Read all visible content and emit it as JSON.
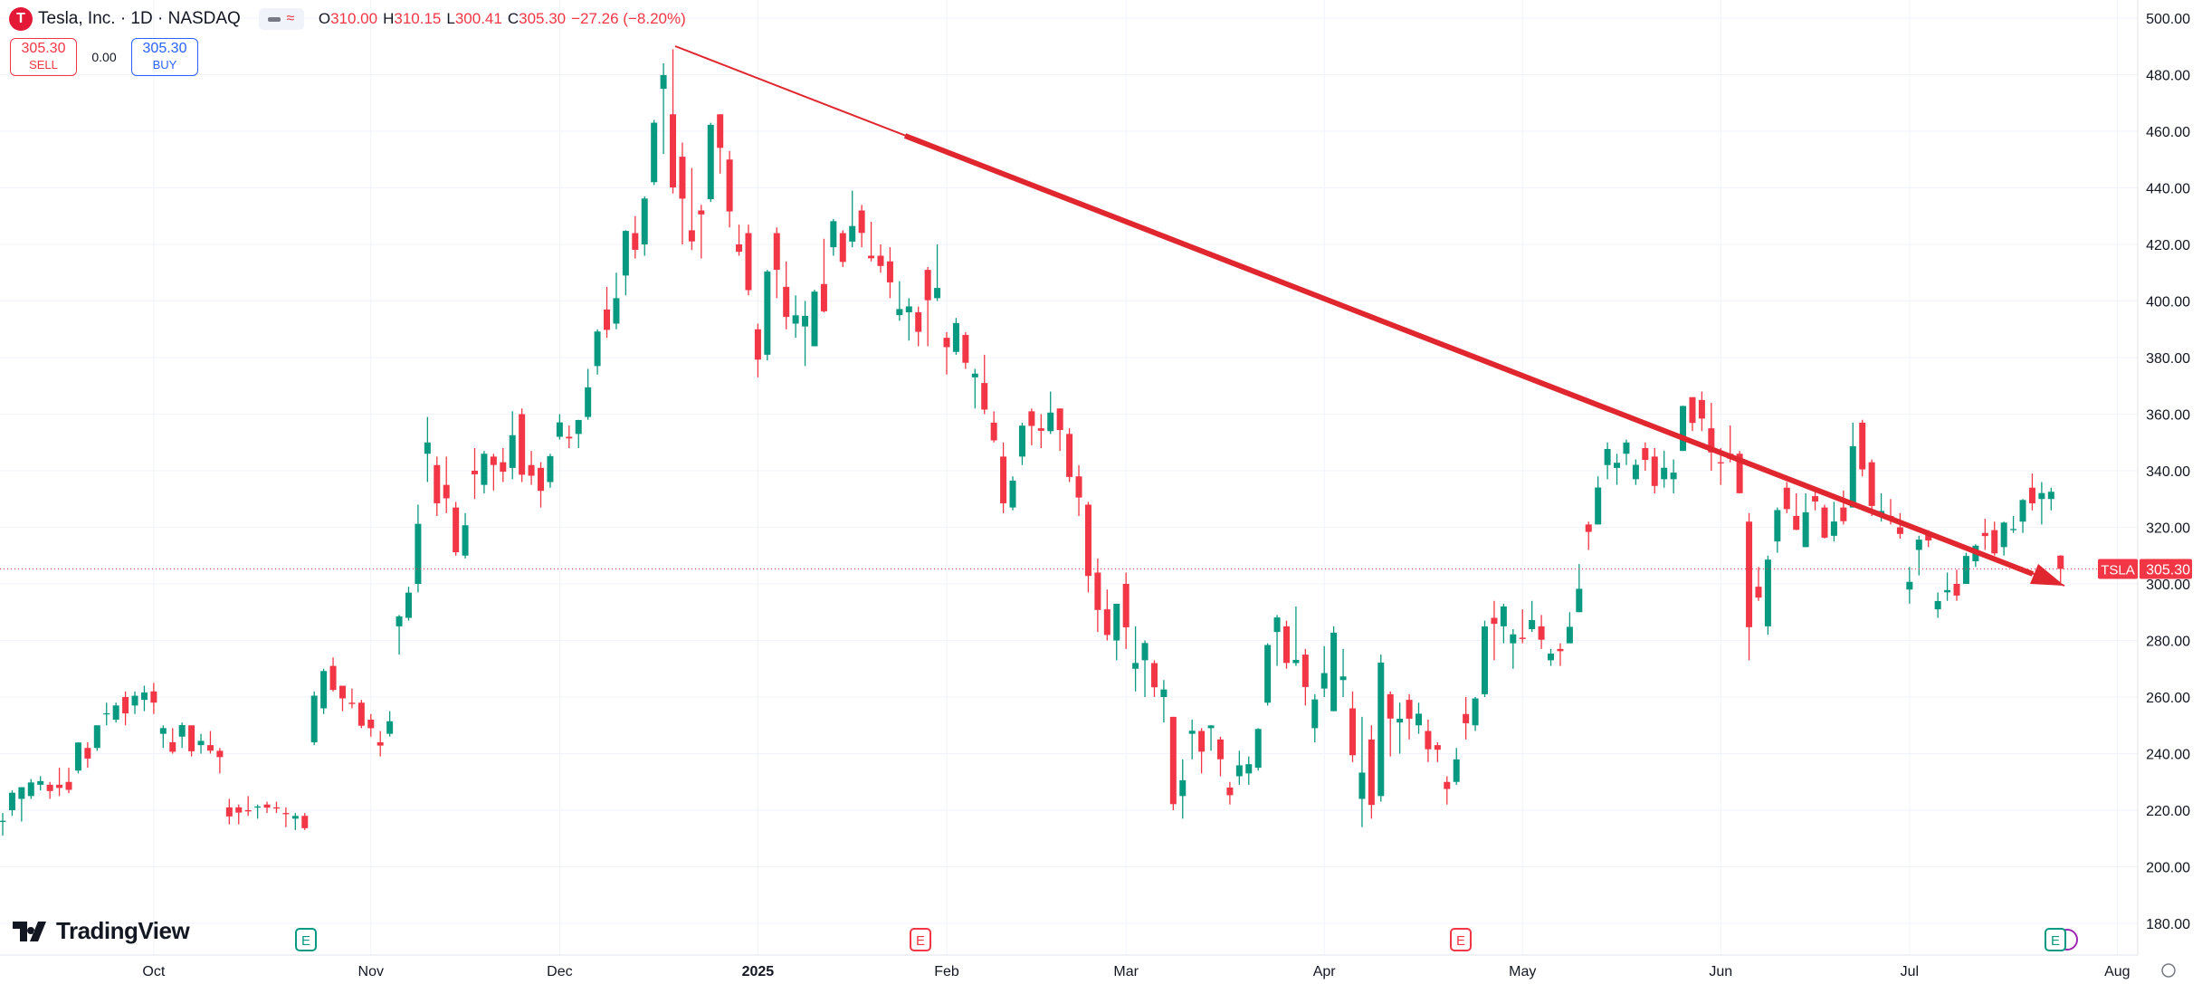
{
  "header": {
    "symbol": "Tesla, Inc. · 1D · NASDAQ",
    "ohlc": [
      {
        "key": "O",
        "value": "310.00"
      },
      {
        "key": "H",
        "value": "310.15"
      },
      {
        "key": "L",
        "value": "300.41"
      },
      {
        "key": "C",
        "value": "305.30"
      }
    ],
    "change": "−27.26 (−8.20%)"
  },
  "trade": {
    "sell_price": "305.30",
    "sell_label": "SELL",
    "spread": "0.00",
    "buy_price": "305.30",
    "buy_label": "BUY"
  },
  "branding": "TradingView",
  "earnings_markers": [
    "E",
    "E",
    "E",
    "E"
  ],
  "chart_data": {
    "type": "candlestick",
    "up_color": "#089981",
    "down_color": "#f23645",
    "grid": true,
    "ylim": [
      173.6,
      506.4
    ],
    "yticks": [
      {
        "value": 180,
        "label": "180.00"
      },
      {
        "value": 200,
        "label": "200.00"
      },
      {
        "value": 220,
        "label": "220.00"
      },
      {
        "value": 240,
        "label": "240.00"
      },
      {
        "value": 260,
        "label": "260.00"
      },
      {
        "value": 280,
        "label": "280.00"
      },
      {
        "value": 300,
        "label": "300.00"
      },
      {
        "value": 320,
        "label": "320.00"
      },
      {
        "value": 340,
        "label": "340.00"
      },
      {
        "value": 360,
        "label": "360.00"
      },
      {
        "value": 380,
        "label": "380.00"
      },
      {
        "value": 400,
        "label": "400.00"
      },
      {
        "value": 420,
        "label": "420.00"
      },
      {
        "value": 440,
        "label": "440.00"
      },
      {
        "value": 460,
        "label": "460.00"
      },
      {
        "value": 480,
        "label": "480.00"
      },
      {
        "value": 500,
        "label": "500.00"
      }
    ],
    "xticks": [
      {
        "value": 16,
        "label": "Oct"
      },
      {
        "value": 39,
        "label": "Nov"
      },
      {
        "value": 59,
        "label": "Dec"
      },
      {
        "value": 80,
        "label": "2025"
      },
      {
        "value": 100,
        "label": "Feb"
      },
      {
        "value": 119,
        "label": "Mar"
      },
      {
        "value": 140,
        "label": "Apr"
      },
      {
        "value": 161,
        "label": "May"
      },
      {
        "value": 182,
        "label": "Jun"
      },
      {
        "value": 202,
        "label": "Jul"
      },
      {
        "value": 224,
        "label": "Aug"
      }
    ],
    "last_symbol": "TSLA",
    "last_price": 305.3,
    "last_price_label": "305.30",
    "open": [
      216,
      220,
      224,
      225,
      229,
      229,
      229,
      230,
      234,
      242,
      242,
      254,
      252,
      260,
      257,
      259,
      262,
      247,
      244,
      246,
      250,
      243,
      243,
      241,
      221,
      221,
      220,
      221,
      222,
      221,
      219,
      217,
      218,
      244,
      256,
      271,
      264,
      258,
      258,
      252,
      244,
      247,
      285,
      288,
      300,
      346,
      342,
      335,
      327,
      310,
      340,
      335,
      345,
      343,
      341,
      360,
      342,
      341,
      336,
      352,
      352,
      353,
      359,
      377,
      397,
      392,
      409,
      424,
      420,
      442,
      475,
      466,
      451,
      425,
      432,
      436,
      466,
      450,
      420,
      424,
      390,
      381,
      424,
      405,
      392,
      391,
      384,
      406,
      419,
      424,
      421,
      432,
      416,
      416,
      414,
      395,
      396,
      396,
      411,
      401,
      387,
      382,
      388,
      373,
      371,
      357,
      345,
      327,
      345,
      361,
      355,
      354,
      362,
      353,
      338,
      328,
      304,
      291,
      280,
      300,
      270,
      273,
      272,
      260,
      253,
      225,
      247,
      248,
      249,
      245,
      228,
      232,
      233,
      235,
      258,
      283,
      285,
      272,
      275,
      249,
      263,
      255,
      266,
      256,
      224,
      245,
      225,
      261,
      251,
      259,
      250,
      248,
      243,
      230,
      230,
      254,
      250,
      261,
      288,
      285,
      279,
      281,
      284,
      285,
      273,
      277,
      279,
      290,
      321,
      321,
      342,
      341,
      346,
      337,
      348,
      345,
      337,
      337,
      347,
      366,
      365,
      355,
      343,
      346,
      346,
      322,
      299,
      285,
      315,
      334,
      324,
      313,
      331,
      327,
      317,
      327,
      327,
      357,
      343,
      324,
      324,
      320,
      298,
      312,
      318,
      291,
      297,
      300,
      300,
      308,
      318,
      319,
      313,
      319,
      322,
      334,
      330,
      330,
      310
    ],
    "high": [
      219,
      227,
      228,
      231,
      232,
      230,
      235,
      235,
      244,
      244,
      250,
      258,
      258,
      262,
      262,
      264,
      265,
      250,
      249,
      251,
      250,
      247,
      248,
      242,
      224,
      222,
      225,
      222,
      223,
      223,
      221,
      219,
      219,
      262,
      270,
      274,
      264,
      263,
      259,
      254,
      248,
      255,
      289,
      299,
      328,
      359,
      345,
      345,
      329,
      325,
      348,
      347,
      346,
      348,
      361,
      362,
      347,
      343,
      346,
      360,
      356,
      358,
      376,
      390,
      405,
      410,
      425,
      430,
      437,
      464,
      484,
      489,
      456,
      447,
      434,
      463,
      466,
      453,
      427,
      427,
      392,
      411,
      426,
      414,
      402,
      400,
      404,
      422,
      429,
      425,
      439,
      434,
      428,
      420,
      419,
      407,
      401,
      398,
      412,
      420,
      389,
      394,
      389,
      376,
      381,
      361,
      350,
      338,
      357,
      362,
      360,
      368,
      362,
      355,
      342,
      329,
      309,
      298,
      293,
      304,
      285,
      280,
      273,
      266,
      253,
      238,
      252,
      249,
      250,
      246,
      230,
      241,
      239,
      249,
      279,
      289,
      287,
      292,
      277,
      261,
      278,
      285,
      277,
      262,
      253,
      250,
      275,
      262,
      258,
      261,
      258,
      252,
      244,
      232,
      242,
      260,
      260,
      287,
      294,
      293,
      284,
      291,
      294,
      289,
      277,
      279,
      290,
      307,
      322,
      338,
      350,
      346,
      351,
      344,
      350,
      348,
      347,
      344,
      363,
      366,
      368,
      364,
      348,
      356,
      347,
      325,
      306,
      310,
      327,
      336,
      332,
      332,
      333,
      328,
      329,
      333,
      357,
      358,
      344,
      332,
      330,
      325,
      306,
      317,
      319,
      297,
      304,
      305,
      311,
      314,
      323,
      322,
      322,
      324,
      330,
      339,
      336,
      334,
      310.15
    ],
    "low": [
      211,
      218,
      216,
      224,
      227,
      224,
      225,
      226,
      233,
      235,
      241,
      250,
      251,
      250,
      254,
      255,
      254,
      242,
      240,
      242,
      239,
      240,
      240,
      233,
      215,
      215,
      218,
      217,
      219,
      219,
      214,
      213,
      213,
      243,
      254,
      262,
      255,
      256,
      249,
      246,
      239,
      246,
      275,
      287,
      297,
      336,
      324,
      325,
      310,
      309,
      330,
      332,
      333,
      336,
      337,
      336,
      335,
      327,
      334,
      351,
      348,
      348,
      358,
      374,
      387,
      390,
      402,
      415,
      416,
      441,
      452,
      438,
      420,
      418,
      415,
      435,
      445,
      426,
      416,
      402,
      373,
      379,
      401,
      390,
      387,
      377,
      384,
      396,
      416,
      412,
      419,
      419,
      414,
      410,
      401,
      393,
      386,
      384,
      384,
      400,
      374,
      381,
      376,
      362,
      360,
      350,
      325,
      326,
      342,
      349,
      348,
      353,
      347,
      336,
      324,
      297,
      283,
      280,
      273,
      277,
      262,
      260,
      260,
      251,
      220,
      217,
      238,
      233,
      241,
      232,
      222,
      229,
      229,
      234,
      257,
      271,
      270,
      271,
      257,
      244,
      260,
      255,
      260,
      237,
      214,
      217,
      223,
      239,
      240,
      245,
      247,
      237,
      237,
      222,
      229,
      245,
      248,
      260,
      273,
      279,
      270,
      279,
      283,
      277,
      271,
      271,
      279,
      290,
      312,
      321,
      337,
      335,
      342,
      335,
      340,
      332,
      334,
      332,
      347,
      354,
      354,
      340,
      335,
      343,
      332,
      273,
      294,
      282,
      311,
      325,
      319,
      313,
      326,
      316,
      315,
      321,
      327,
      338,
      324,
      322,
      321,
      316,
      293,
      303,
      313,
      288,
      294,
      294,
      300,
      306,
      312,
      310,
      310,
      318,
      318,
      326,
      321,
      326,
      300.41
    ],
    "close": [
      216.27,
      226.17,
      228.13,
      229.81,
      230.29,
      226.78,
      227.87,
      227.2,
      243.92,
      238.25,
      250,
      254.27,
      257.02,
      254.22,
      260.46,
      261.63,
      258.02,
      249.02,
      240.66,
      250.08,
      240.83,
      244.5,
      241.05,
      238.77,
      217.8,
      219.16,
      219.57,
      221.33,
      220.89,
      220.7,
      218.85,
      217.97,
      213.65,
      260.48,
      269.19,
      262.51,
      259.52,
      257.55,
      249.85,
      248.98,
      242.84,
      251.44,
      288.53,
      296.91,
      321.22,
      350,
      328.49,
      330.24,
      311.18,
      320.72,
      338.74,
      346,
      342.03,
      339.64,
      352.56,
      338.59,
      338.23,
      332.89,
      345.16,
      357.09,
      351.42,
      357.93,
      369.49,
      389.22,
      389.79,
      400.99,
      424.77,
      418.1,
      436.23,
      463.02,
      479.86,
      440.13,
      436.17,
      421.06,
      430.6,
      462.28,
      454.13,
      431.66,
      417.41,
      403.84,
      379.28,
      410.44,
      411.05,
      394.36,
      394.94,
      394.74,
      403.31,
      396.36,
      428.22,
      413.82,
      426.5,
      424.07,
      415.11,
      412.38,
      406.58,
      397.15,
      398.09,
      389.1,
      400.28,
      404.6,
      383.68,
      392.21,
      378.17,
      374.32,
      361.62,
      350.73,
      328.5,
      336.51,
      355.94,
      355.84,
      354.11,
      360.56,
      354.4,
      337.8,
      330.53,
      302.8,
      290.8,
      281.95,
      292.98,
      284.65,
      272.04,
      279.1,
      263.45,
      262.67,
      222.15,
      230.58,
      248.09,
      240.68,
      249.98,
      238.01,
      225.31,
      235.86,
      236.26,
      248.71,
      278.39,
      288.14,
      272.06,
      273.13,
      263.55,
      259.16,
      268.46,
      282.76,
      267.28,
      239.43,
      233.29,
      221.86,
      272.2,
      252.4,
      252.31,
      252.35,
      254.11,
      241.55,
      241.37,
      227.5,
      237.97,
      250.74,
      259.51,
      284.95,
      285.88,
      292.03,
      282.16,
      280.52,
      287.21,
      280.26,
      275.35,
      276.22,
      284.82,
      298.26,
      318.38,
      334.07,
      347.68,
      342.82,
      349.98,
      342.09,
      343.82,
      334.62,
      341.04,
      339.34,
      362.89,
      356.9,
      358.43,
      346.46,
      342.69,
      344.27,
      332.05,
      284.7,
      295.14,
      308.58,
      326.09,
      326.43,
      319.11,
      325.31,
      329.13,
      316.35,
      322.05,
      322.16,
      348.68,
      340.47,
      327.55,
      325.78,
      323.63,
      317.66,
      300.71,
      315.65,
      315.35,
      293.94,
      297.81,
      295.88,
      309.87,
      313.51,
      316.9,
      310.78,
      321.67,
      319.41,
      329.65,
      328.49,
      332.11,
      332.56,
      305.3
    ]
  }
}
